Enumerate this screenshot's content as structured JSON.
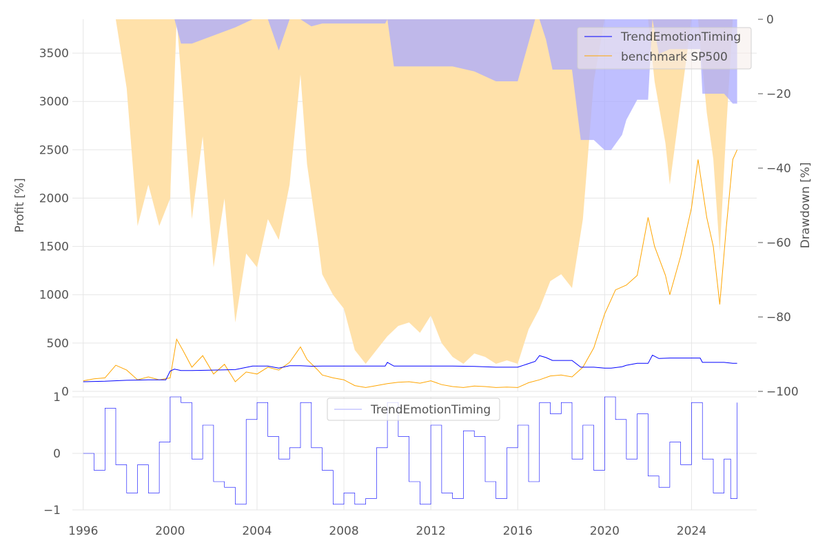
{
  "chart_data": [
    {
      "type": "line",
      "panel": "top",
      "title": "",
      "xlabel": "",
      "ylabel": "Profit [%]",
      "y2label": "Drawdown [%]",
      "xlim": [
        1995.5,
        2027.0
      ],
      "ylim": [
        0,
        3850
      ],
      "y2lim": [
        -100,
        0
      ],
      "yticks": [
        0,
        500,
        1000,
        1500,
        2000,
        2500,
        3000,
        3500
      ],
      "ytick_labels": [
        "0",
        "500",
        "1000",
        "1500",
        "2000",
        "2500",
        "3000",
        "3500"
      ],
      "y2ticks": [
        0,
        -20,
        -40,
        -60,
        -80,
        -100
      ],
      "y2tick_labels": [
        "0",
        "−20",
        "−40",
        "−60",
        "−80",
        "−100"
      ],
      "legend": {
        "position": "top-right",
        "entries": [
          "TrendEmotionTiming",
          "benchmark SP500"
        ]
      },
      "colors": {
        "strategy": "#0000ff",
        "benchmark": "#ffa500",
        "strategy_drawdown": "#aaaaff",
        "benchmark_drawdown": "#ffe1aa",
        "overlap": "#c4a7a7"
      },
      "series": [
        {
          "name": "TrendEmotionTiming",
          "x": [
            1996.0,
            1997.0,
            1998.0,
            1999.0,
            1999.8,
            2000.0,
            2000.2,
            2000.5,
            2001.0,
            2002.0,
            2003.0,
            2003.8,
            2004.5,
            2005.0,
            2005.5,
            2006.0,
            2006.5,
            2007.0,
            2008.0,
            2009.0,
            2009.9,
            2010.0,
            2010.3,
            2011.0,
            2012.0,
            2013.0,
            2014.0,
            2015.0,
            2016.0,
            2016.8,
            2017.0,
            2017.3,
            2017.6,
            2018.0,
            2018.5,
            2018.9,
            2019.5,
            2020.0,
            2020.3,
            2020.8,
            2021.0,
            2021.5,
            2022.0,
            2022.2,
            2022.5,
            2023.0,
            2023.5,
            2024.0,
            2024.4,
            2024.5,
            2025.0,
            2025.5,
            2025.9,
            2026.1
          ],
          "values": [
            100,
            105,
            115,
            120,
            120,
            210,
            230,
            215,
            215,
            220,
            225,
            262,
            262,
            240,
            265,
            265,
            260,
            262,
            262,
            262,
            262,
            300,
            262,
            262,
            262,
            262,
            258,
            250,
            250,
            310,
            370,
            350,
            320,
            320,
            320,
            250,
            250,
            240,
            240,
            255,
            270,
            290,
            290,
            375,
            340,
            345,
            345,
            345,
            345,
            300,
            300,
            300,
            290,
            290
          ]
        },
        {
          "name": "benchmark SP500",
          "x": [
            1996.0,
            1996.5,
            1997.0,
            1997.5,
            1998.0,
            1998.5,
            1999.0,
            1999.5,
            2000.0,
            2000.3,
            2000.6,
            2001.0,
            2001.5,
            2002.0,
            2002.5,
            2003.0,
            2003.5,
            2004.0,
            2004.5,
            2005.0,
            2005.5,
            2006.0,
            2006.3,
            2006.8,
            2007.0,
            2007.5,
            2008.0,
            2008.5,
            2009.0,
            2009.5,
            2010.0,
            2010.5,
            2011.0,
            2011.5,
            2012.0,
            2012.5,
            2013.0,
            2013.5,
            2014.0,
            2014.5,
            2015.0,
            2015.5,
            2016.0,
            2016.5,
            2017.0,
            2017.5,
            2018.0,
            2018.5,
            2019.0,
            2019.5,
            2020.0,
            2020.5,
            2021.0,
            2021.5,
            2022.0,
            2022.3,
            2022.8,
            2023.0,
            2023.5,
            2024.0,
            2024.3,
            2024.7,
            2025.0,
            2025.3,
            2025.6,
            2025.9,
            2026.1
          ],
          "values": [
            110,
            130,
            140,
            270,
            220,
            120,
            150,
            120,
            140,
            540,
            420,
            250,
            370,
            180,
            280,
            100,
            200,
            180,
            250,
            220,
            300,
            460,
            330,
            220,
            170,
            140,
            120,
            60,
            40,
            60,
            80,
            95,
            100,
            85,
            110,
            70,
            50,
            40,
            55,
            50,
            40,
            45,
            40,
            90,
            120,
            160,
            170,
            150,
            250,
            450,
            800,
            1050,
            1100,
            1200,
            1800,
            1500,
            1200,
            1000,
            1400,
            1900,
            2400,
            1800,
            1500,
            900,
            1700,
            2400,
            2500
          ]
        }
      ]
    },
    {
      "type": "line",
      "panel": "bottom",
      "title": "",
      "xlabel": "",
      "ylabel": "",
      "xlim": [
        1995.5,
        2027.0
      ],
      "ylim": [
        -1,
        1
      ],
      "xticks": [
        1996,
        2000,
        2004,
        2008,
        2012,
        2016,
        2020,
        2024
      ],
      "xtick_labels": [
        "1996",
        "2000",
        "2004",
        "2008",
        "2012",
        "2016",
        "2020",
        "2024"
      ],
      "yticks": [
        1,
        0,
        -1
      ],
      "ytick_labels": [
        "1",
        "0",
        "−1"
      ],
      "legend": {
        "position": "top-center",
        "entries": [
          "TrendEmotionTiming"
        ]
      },
      "series": [
        {
          "name": "TrendEmotionTiming",
          "x": [
            1996.0,
            1996.5,
            1997.0,
            1997.5,
            1998.0,
            1998.5,
            1999.0,
            1999.5,
            2000.0,
            2000.5,
            2001.0,
            2001.5,
            2002.0,
            2002.5,
            2003.0,
            2003.5,
            2004.0,
            2004.5,
            2005.0,
            2005.5,
            2006.0,
            2006.5,
            2007.0,
            2007.5,
            2008.0,
            2008.5,
            2009.0,
            2009.5,
            2010.0,
            2010.5,
            2011.0,
            2011.5,
            2012.0,
            2012.5,
            2013.0,
            2013.5,
            2014.0,
            2014.5,
            2015.0,
            2015.5,
            2016.0,
            2016.5,
            2017.0,
            2017.5,
            2018.0,
            2018.5,
            2019.0,
            2019.5,
            2020.0,
            2020.5,
            2021.0,
            2021.5,
            2022.0,
            2022.5,
            2023.0,
            2023.5,
            2024.0,
            2024.5,
            2025.0,
            2025.5,
            2025.8,
            2026.1
          ],
          "values": [
            0.0,
            -0.3,
            0.8,
            -0.2,
            -0.7,
            -0.2,
            -0.7,
            0.2,
            1.0,
            0.9,
            -0.1,
            0.5,
            -0.5,
            -0.6,
            -0.9,
            0.6,
            0.9,
            0.3,
            -0.1,
            0.1,
            0.9,
            0.1,
            -0.3,
            -0.9,
            -0.7,
            -0.9,
            -0.8,
            0.1,
            0.9,
            0.3,
            -0.5,
            -0.9,
            0.5,
            -0.7,
            -0.8,
            0.4,
            0.3,
            -0.5,
            -0.8,
            0.1,
            0.5,
            -0.5,
            0.9,
            0.7,
            0.9,
            -0.1,
            0.5,
            -0.3,
            1.0,
            0.6,
            -0.1,
            0.7,
            -0.4,
            -0.6,
            0.2,
            -0.2,
            0.9,
            -0.1,
            -0.7,
            -0.1,
            -0.8,
            0.9
          ]
        }
      ]
    }
  ]
}
